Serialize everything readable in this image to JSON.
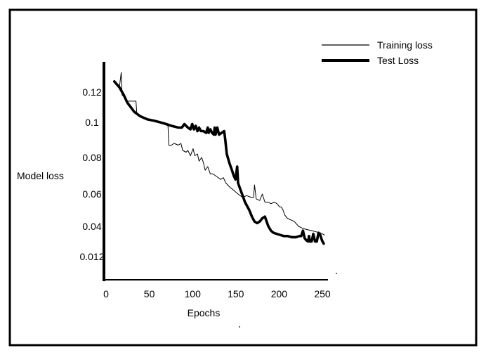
{
  "colors": {
    "line": "#000000",
    "background": "#ffffff",
    "frame": "#000000"
  },
  "chart_data": {
    "type": "line",
    "title": "",
    "xlabel": "Epochs",
    "ylabel": "Model loss",
    "xlim": [
      0,
      250
    ],
    "x_ticks": [
      {
        "value": 0,
        "label": "0"
      },
      {
        "value": 50,
        "label": "50"
      },
      {
        "value": 100,
        "label": "100"
      },
      {
        "value": 150,
        "label": "150"
      },
      {
        "value": 200,
        "label": "200"
      },
      {
        "value": 250,
        "label": "250"
      }
    ],
    "y_ticks": [
      {
        "value": 0.12,
        "label": "0.12"
      },
      {
        "value": 0.1,
        "label": "0.1"
      },
      {
        "value": 0.08,
        "label": "0.08"
      },
      {
        "value": 0.06,
        "label": "0.06"
      },
      {
        "value": 0.04,
        "label": "0.04"
      },
      {
        "value": 0.012,
        "label": "0.012"
      }
    ],
    "grid": false,
    "legend_position": "top-right",
    "series": [
      {
        "name": "Training loss",
        "style": "thin",
        "points": [
          [
            13,
            0.127
          ],
          [
            18,
            0.124
          ],
          [
            20,
            0.133
          ],
          [
            21,
            0.118
          ],
          [
            23,
            0.117
          ],
          [
            26,
            0.114
          ],
          [
            29,
            0.114
          ],
          [
            32,
            0.114
          ],
          [
            37,
            0.114
          ],
          [
            38,
            0.106
          ],
          [
            42,
            0.104
          ],
          [
            50,
            0.102
          ],
          [
            60,
            0.101
          ],
          [
            70,
            0.099
          ],
          [
            74,
            0.098
          ],
          [
            75,
            0.087
          ],
          [
            78,
            0.087
          ],
          [
            81,
            0.088
          ],
          [
            86,
            0.087
          ],
          [
            89,
            0.088
          ],
          [
            91,
            0.084
          ],
          [
            95,
            0.083
          ],
          [
            97,
            0.084
          ],
          [
            100,
            0.081
          ],
          [
            103,
            0.085
          ],
          [
            105,
            0.081
          ],
          [
            108,
            0.082
          ],
          [
            110,
            0.078
          ],
          [
            113,
            0.08
          ],
          [
            115,
            0.077
          ],
          [
            117,
            0.073
          ],
          [
            120,
            0.075
          ],
          [
            123,
            0.071
          ],
          [
            126,
            0.071
          ],
          [
            129,
            0.07
          ],
          [
            132,
            0.069
          ],
          [
            135,
            0.068
          ],
          [
            138,
            0.069
          ],
          [
            141,
            0.066
          ],
          [
            145,
            0.064
          ],
          [
            150,
            0.062
          ],
          [
            155,
            0.06
          ],
          [
            160,
            0.058
          ],
          [
            165,
            0.059
          ],
          [
            170,
            0.058
          ],
          [
            173,
            0.058
          ],
          [
            174,
            0.065
          ],
          [
            176,
            0.057
          ],
          [
            180,
            0.056
          ],
          [
            183,
            0.06
          ],
          [
            186,
            0.055
          ],
          [
            190,
            0.055
          ],
          [
            193,
            0.054
          ],
          [
            197,
            0.055
          ],
          [
            200,
            0.054
          ],
          [
            203,
            0.052
          ],
          [
            205,
            0.052
          ],
          [
            207,
            0.05
          ],
          [
            209,
            0.047
          ],
          [
            212,
            0.045
          ],
          [
            216,
            0.044
          ],
          [
            220,
            0.043
          ],
          [
            225,
            0.04
          ],
          [
            230,
            0.038
          ],
          [
            235,
            0.037
          ],
          [
            240,
            0.036
          ],
          [
            245,
            0.035
          ],
          [
            250,
            0.034
          ],
          [
            255,
            0.032
          ]
        ]
      },
      {
        "name": "Test Loss",
        "style": "thick",
        "points": [
          [
            12,
            0.127
          ],
          [
            18,
            0.123
          ],
          [
            23,
            0.118
          ],
          [
            27,
            0.113
          ],
          [
            31,
            0.11
          ],
          [
            35,
            0.107
          ],
          [
            42,
            0.104
          ],
          [
            50,
            0.102
          ],
          [
            58,
            0.101
          ],
          [
            65,
            0.1
          ],
          [
            72,
            0.099
          ],
          [
            78,
            0.098
          ],
          [
            86,
            0.097
          ],
          [
            90,
            0.097
          ],
          [
            93,
            0.099
          ],
          [
            95,
            0.098
          ],
          [
            97,
            0.097
          ],
          [
            100,
            0.096
          ],
          [
            102,
            0.099
          ],
          [
            104,
            0.096
          ],
          [
            106,
            0.098
          ],
          [
            108,
            0.095
          ],
          [
            110,
            0.097
          ],
          [
            112,
            0.095
          ],
          [
            115,
            0.095
          ],
          [
            118,
            0.094
          ],
          [
            120,
            0.097
          ],
          [
            121,
            0.094
          ],
          [
            123,
            0.096
          ],
          [
            125,
            0.094
          ],
          [
            127,
            0.093
          ],
          [
            128,
            0.097
          ],
          [
            129,
            0.093
          ],
          [
            131,
            0.097
          ],
          [
            133,
            0.093
          ],
          [
            136,
            0.094
          ],
          [
            139,
            0.095
          ],
          [
            140,
            0.091
          ],
          [
            142,
            0.082
          ],
          [
            145,
            0.077
          ],
          [
            148,
            0.073
          ],
          [
            150,
            0.07
          ],
          [
            152,
            0.068
          ],
          [
            154,
            0.075
          ],
          [
            155,
            0.066
          ],
          [
            158,
            0.062
          ],
          [
            161,
            0.058
          ],
          [
            163,
            0.055
          ],
          [
            165,
            0.053
          ],
          [
            168,
            0.05
          ],
          [
            171,
            0.046
          ],
          [
            174,
            0.043
          ],
          [
            177,
            0.042
          ],
          [
            180,
            0.043
          ],
          [
            183,
            0.045
          ],
          [
            186,
            0.046
          ],
          [
            190,
            0.04
          ],
          [
            193,
            0.036
          ],
          [
            196,
            0.034
          ],
          [
            200,
            0.033
          ],
          [
            204,
            0.032
          ],
          [
            208,
            0.031
          ],
          [
            212,
            0.031
          ],
          [
            217,
            0.03
          ],
          [
            222,
            0.03
          ],
          [
            226,
            0.031
          ],
          [
            228,
            0.031
          ],
          [
            230,
            0.036
          ],
          [
            232,
            0.029
          ],
          [
            234,
            0.027
          ],
          [
            236,
            0.026
          ],
          [
            237,
            0.031
          ],
          [
            238,
            0.026
          ],
          [
            240,
            0.026
          ],
          [
            242,
            0.033
          ],
          [
            244,
            0.026
          ],
          [
            246,
            0.026
          ],
          [
            248,
            0.034
          ],
          [
            250,
            0.032
          ],
          [
            252,
            0.027
          ],
          [
            254,
            0.024
          ]
        ]
      }
    ]
  }
}
